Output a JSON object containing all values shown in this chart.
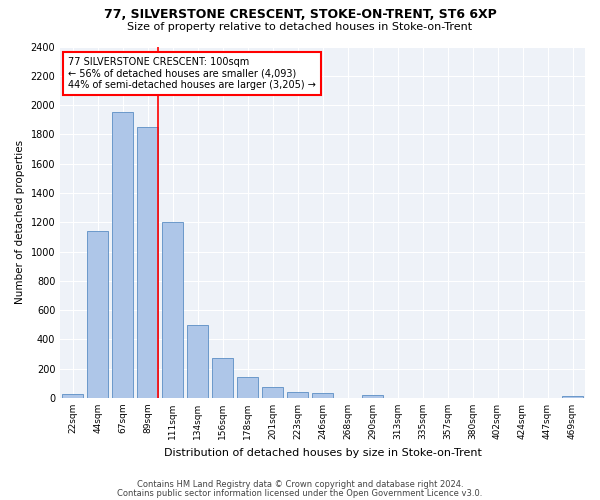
{
  "title1": "77, SILVERSTONE CRESCENT, STOKE-ON-TRENT, ST6 6XP",
  "title2": "Size of property relative to detached houses in Stoke-on-Trent",
  "xlabel": "Distribution of detached houses by size in Stoke-on-Trent",
  "ylabel": "Number of detached properties",
  "categories": [
    "22sqm",
    "44sqm",
    "67sqm",
    "89sqm",
    "111sqm",
    "134sqm",
    "156sqm",
    "178sqm",
    "201sqm",
    "223sqm",
    "246sqm",
    "268sqm",
    "290sqm",
    "313sqm",
    "335sqm",
    "357sqm",
    "380sqm",
    "402sqm",
    "424sqm",
    "447sqm",
    "469sqm"
  ],
  "values": [
    30,
    1140,
    1950,
    1850,
    1200,
    500,
    270,
    145,
    75,
    40,
    35,
    0,
    20,
    0,
    0,
    0,
    0,
    0,
    0,
    0,
    15
  ],
  "bar_color": "#aec6e8",
  "bar_edge_color": "#5b8ec4",
  "marker_line_color": "red",
  "annotation_text": "77 SILVERSTONE CRESCENT: 100sqm\n← 56% of detached houses are smaller (4,093)\n44% of semi-detached houses are larger (3,205) →",
  "annotation_box_color": "white",
  "annotation_box_edge_color": "red",
  "footer1": "Contains HM Land Registry data © Crown copyright and database right 2024.",
  "footer2": "Contains public sector information licensed under the Open Government Licence v3.0.",
  "ylim": [
    0,
    2400
  ],
  "yticks": [
    0,
    200,
    400,
    600,
    800,
    1000,
    1200,
    1400,
    1600,
    1800,
    2000,
    2200,
    2400
  ],
  "bg_color": "#eef2f8",
  "grid_color": "white",
  "marker_bin_index": 3
}
